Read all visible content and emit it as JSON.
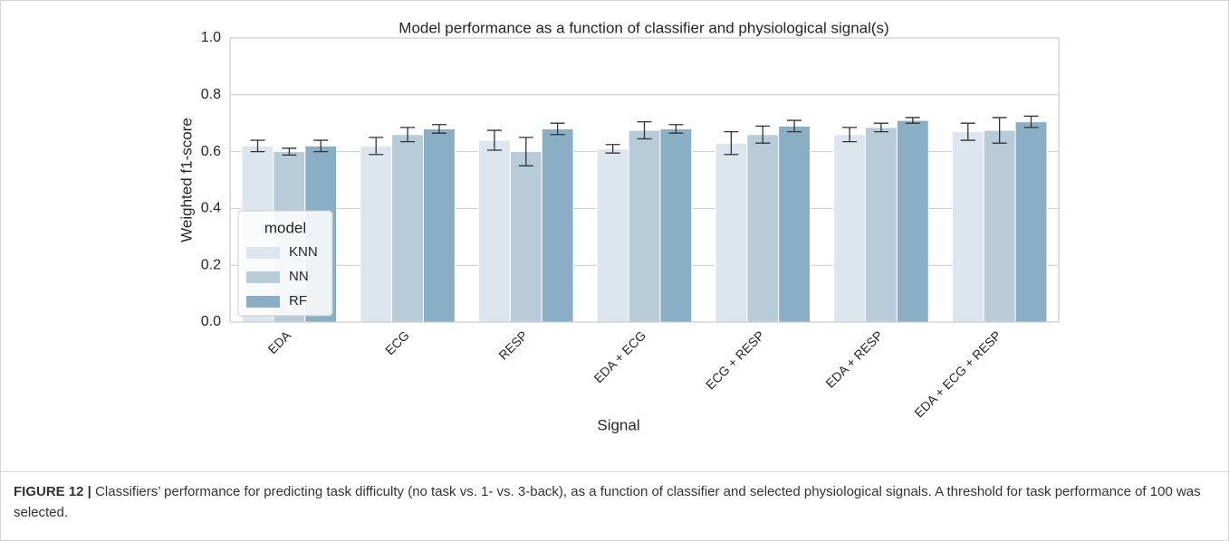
{
  "chart_data": {
    "type": "bar",
    "title": "Model performance as a function of classifier and physiological signal(s)",
    "x_label": "Signal",
    "y_label": "Weighted f1-score",
    "categories": [
      "EDA",
      "ECG",
      "RESP",
      "EDA + ECG",
      "ECG + RESP",
      "EDA + RESP",
      "EDA + ECG + RESP"
    ],
    "series": [
      {
        "name": "KNN",
        "color": "#dde5ee",
        "values": [
          0.62,
          0.62,
          0.64,
          0.61,
          0.63,
          0.66,
          0.67
        ],
        "errors": [
          0.02,
          0.03,
          0.035,
          0.015,
          0.04,
          0.025,
          0.03
        ]
      },
      {
        "name": "NN",
        "color": "#b8cbd9",
        "values": [
          0.6,
          0.66,
          0.6,
          0.675,
          0.66,
          0.685,
          0.675
        ],
        "errors": [
          0.012,
          0.025,
          0.05,
          0.03,
          0.03,
          0.015,
          0.045
        ]
      },
      {
        "name": "RF",
        "color": "#8aafc4",
        "values": [
          0.62,
          0.68,
          0.68,
          0.68,
          0.69,
          0.71,
          0.705
        ],
        "errors": [
          0.02,
          0.015,
          0.02,
          0.015,
          0.02,
          0.01,
          0.02
        ]
      }
    ],
    "legend_title": "model",
    "legend_position": "lower left",
    "ylim": [
      0,
      1
    ],
    "yticks": [
      {
        "value": 0,
        "label": "0.0"
      },
      0.2,
      0.4,
      0.6,
      0.8,
      {
        "value": 1,
        "label": "1.0"
      }
    ],
    "grid": true
  },
  "caption": {
    "label": "FIGURE 12 |",
    "text": "Classifiers’ performance for predicting task difficulty (no task vs. 1- vs. 3-back), as a function of classifier and selected physiological signals. A threshold for task performance of 100 was selected."
  }
}
